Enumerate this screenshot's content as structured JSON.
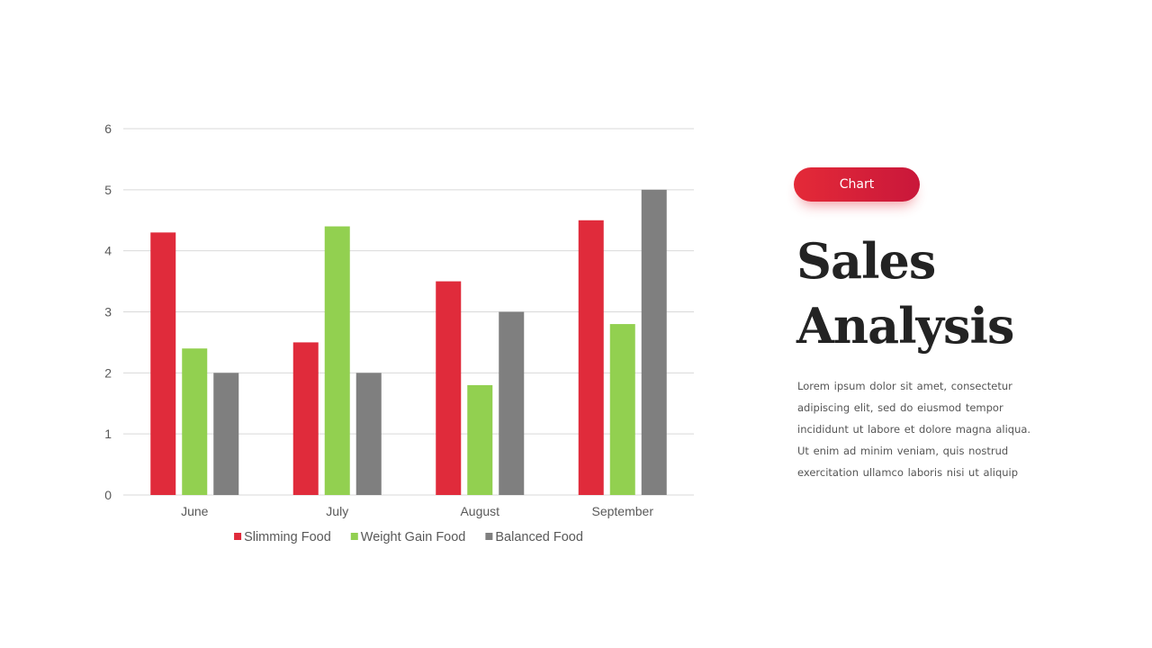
{
  "badge": {
    "label": "Chart"
  },
  "heading": {
    "line1": "Sales",
    "line2": "Analysis"
  },
  "body_lines": [
    "Lorem ipsum dolor sit amet, consectetur",
    "adipiscing elit, sed do eiusmod tempor",
    "incididunt ut labore et dolore magna aliqua.",
    "Ut enim ad minim veniam, quis nostrud",
    "exercitation ullamco laboris nisi ut aliquip"
  ],
  "chart_data": {
    "type": "bar",
    "categories": [
      "June",
      "July",
      "August",
      "September"
    ],
    "series": [
      {
        "name": "Slimming Food",
        "values": [
          4.3,
          2.5,
          3.5,
          4.5
        ],
        "color": "#e02b3b"
      },
      {
        "name": "Weight Gain Food",
        "values": [
          2.4,
          4.4,
          1.8,
          2.8
        ],
        "color": "#92d050"
      },
      {
        "name": "Balanced Food",
        "values": [
          2,
          2,
          3,
          5
        ],
        "color": "#7f7f7f"
      }
    ],
    "ylim": [
      0,
      6
    ],
    "yticks": [
      "0",
      "1",
      "2",
      "3",
      "4",
      "5",
      "6"
    ],
    "grid": true,
    "legend_position": "bottom",
    "xlabel": "",
    "ylabel": "",
    "title": ""
  }
}
